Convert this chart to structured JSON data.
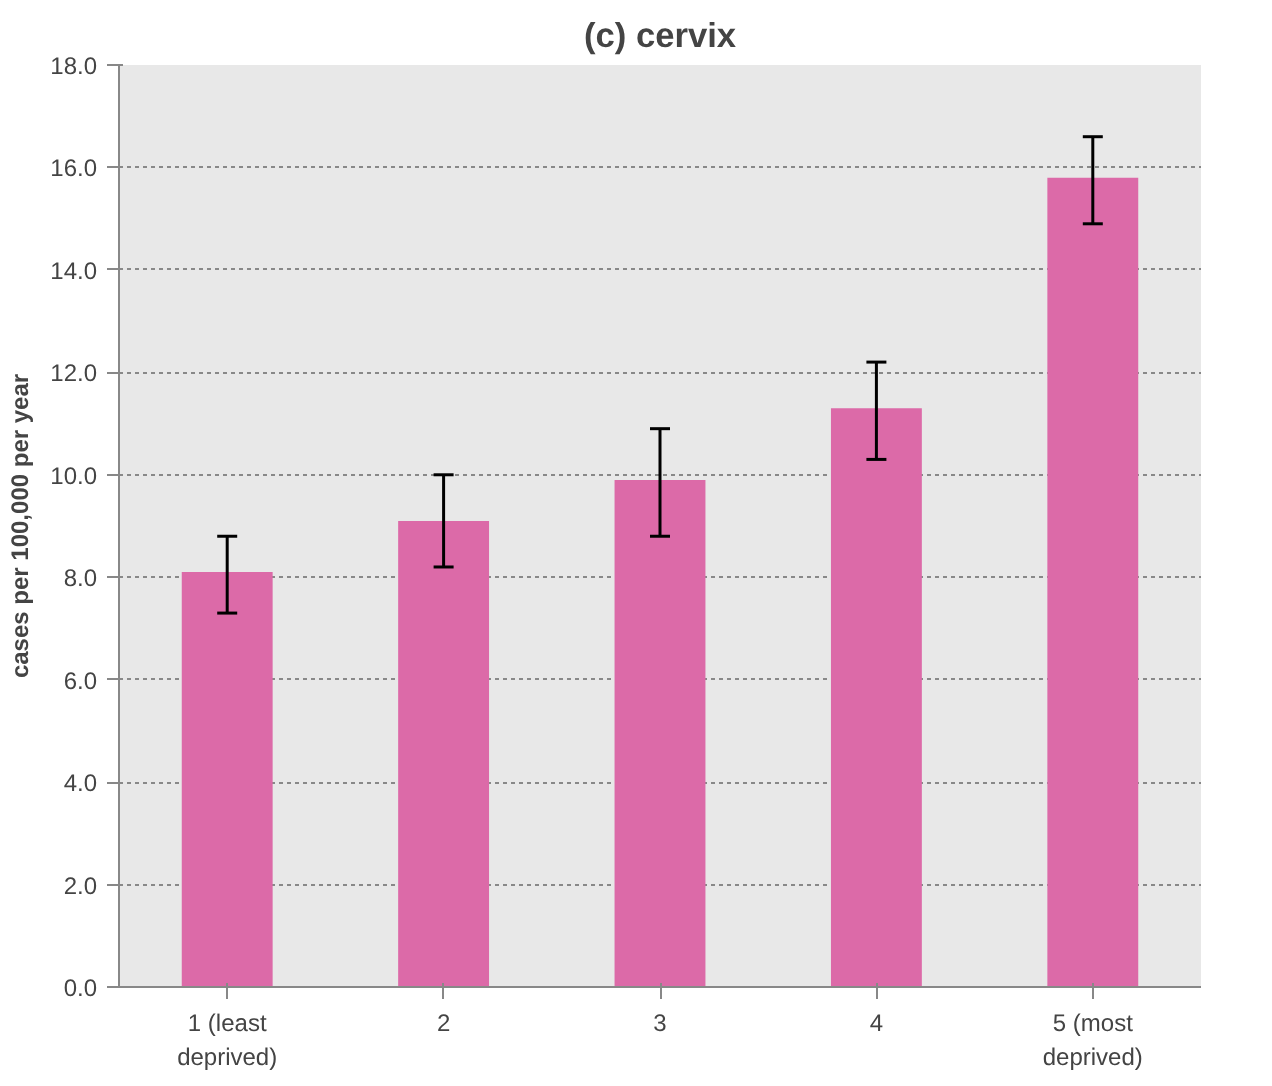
{
  "chart_data": {
    "type": "bar",
    "title": "(c) cervix",
    "ylabel": "cases per 100,000 per year",
    "categories": [
      "1 (least deprived)",
      "2",
      "3",
      "4",
      "5 (most deprived)"
    ],
    "values": [
      8.1,
      9.1,
      9.9,
      11.3,
      15.8
    ],
    "errors": [
      [
        7.3,
        8.8
      ],
      [
        8.2,
        10.0
      ],
      [
        8.8,
        10.9
      ],
      [
        10.3,
        12.2
      ],
      [
        14.9,
        16.6
      ]
    ],
    "color": "#dc6aa8",
    "ylim": [
      0,
      18
    ],
    "yticks": [
      {
        "value": 0,
        "label": "0.0"
      },
      {
        "value": 2,
        "label": "2.0"
      },
      {
        "value": 4,
        "label": "4.0"
      },
      {
        "value": 6,
        "label": "6.0"
      },
      {
        "value": 8,
        "label": "8.0"
      },
      {
        "value": 10,
        "label": "10.0"
      },
      {
        "value": 12,
        "label": "12.0"
      },
      {
        "value": 14,
        "label": "14.0"
      },
      {
        "value": 16,
        "label": "16.0"
      },
      {
        "value": 18,
        "label": "18.0"
      }
    ],
    "grid": "y"
  }
}
